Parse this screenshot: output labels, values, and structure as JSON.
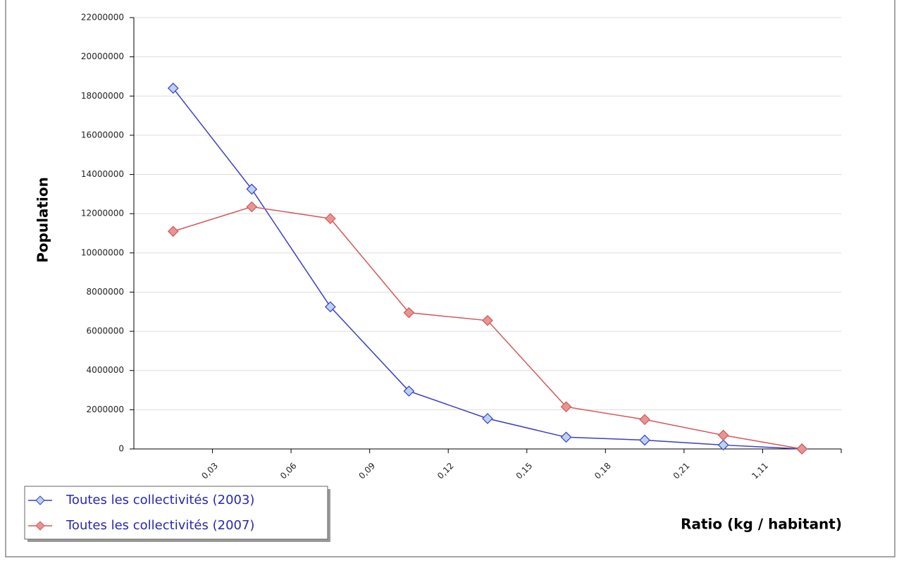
{
  "chart_data": {
    "type": "line",
    "x_label": "Ratio (kg / habitant)",
    "y_label": "Population",
    "x_tick_labels": [
      "0,03",
      "0,06",
      "0,09",
      "0,12",
      "0,15",
      "0,18",
      "0,21",
      "1,11"
    ],
    "series": [
      {
        "name": "Toutes les collectivités (2003)",
        "color": "#3c3cc8",
        "marker_color": "#b9d3f2",
        "values": [
          18400000,
          13250000,
          7250000,
          2950000,
          1550000,
          600000,
          450000,
          200000,
          0
        ]
      },
      {
        "name": "Toutes les collectivités (2007)",
        "color": "#d45858",
        "marker_color": "#e79494",
        "values": [
          11100000,
          12350000,
          11750000,
          6950000,
          6550000,
          2150000,
          1500000,
          700000,
          0
        ]
      }
    ],
    "ylim": [
      0,
      22000000
    ],
    "yticks": [
      0,
      2000000,
      4000000,
      6000000,
      8000000,
      10000000,
      12000000,
      14000000,
      16000000,
      18000000,
      20000000,
      22000000
    ],
    "grid": true
  }
}
